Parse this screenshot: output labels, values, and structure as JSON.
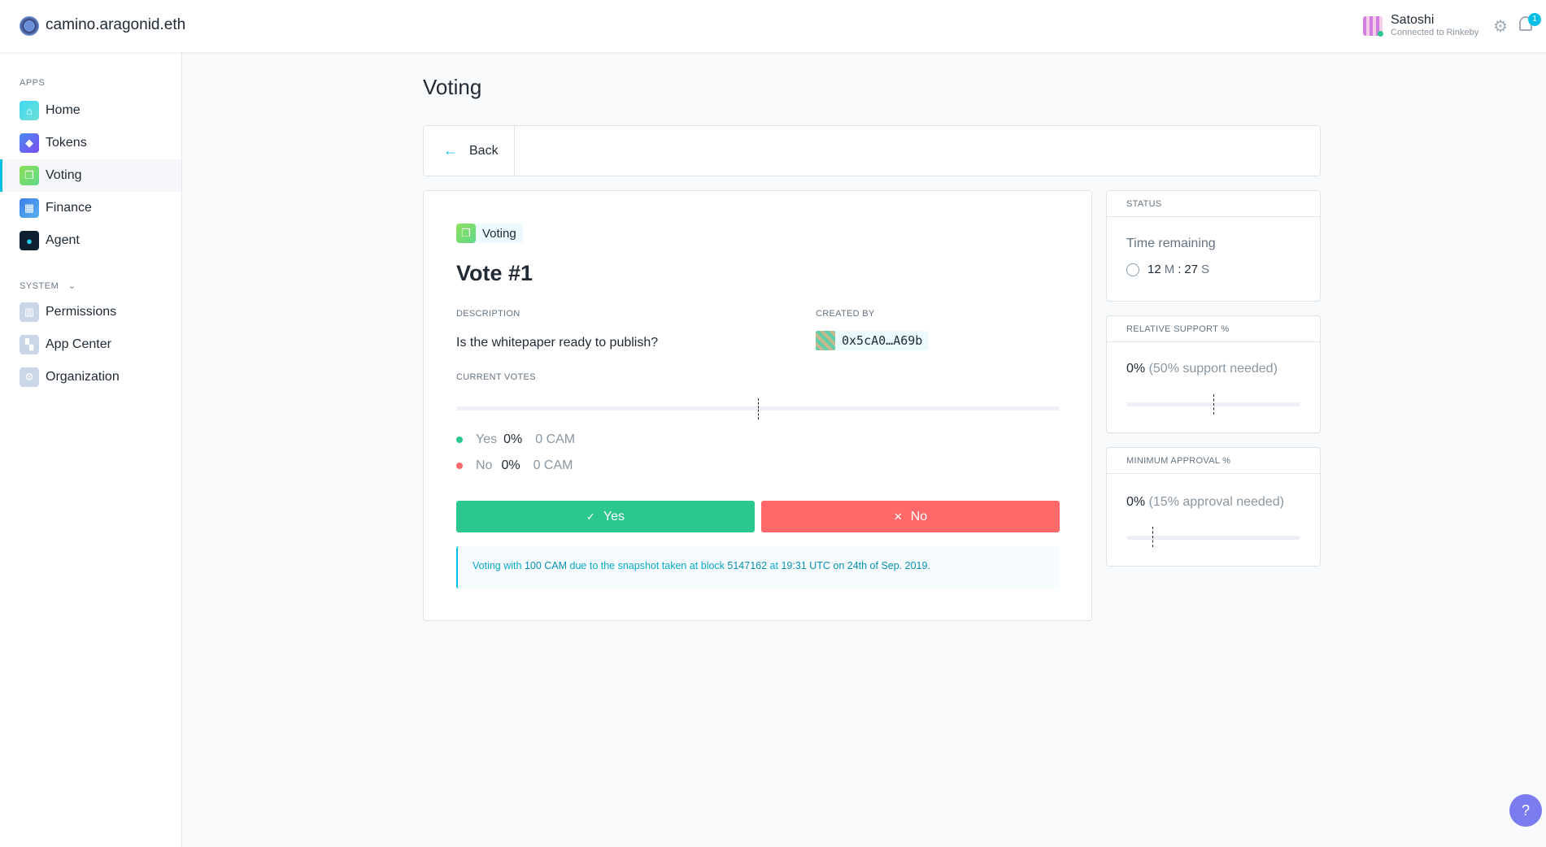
{
  "header": {
    "org_name": "camino.aragonid.eth",
    "user_name": "Satoshi",
    "network_status": "Connected to Rinkeby",
    "notification_count": "1"
  },
  "sidebar": {
    "apps_label": "APPS",
    "apps": [
      {
        "label": "Home",
        "icon": "home-icon",
        "color": "#3fd8f0"
      },
      {
        "label": "Tokens",
        "icon": "tokens-icon",
        "color": "#6b6cf0"
      },
      {
        "label": "Voting",
        "icon": "voting-icon",
        "color": "#7ee07a"
      },
      {
        "label": "Finance",
        "icon": "finance-icon",
        "color": "#4a90f0"
      },
      {
        "label": "Agent",
        "icon": "agent-icon",
        "color": "#0f2a3a"
      }
    ],
    "system_label": "SYSTEM",
    "system": [
      {
        "label": "Permissions",
        "icon": "permissions-icon"
      },
      {
        "label": "App Center",
        "icon": "app-center-icon"
      },
      {
        "label": "Organization",
        "icon": "organization-icon"
      }
    ]
  },
  "page": {
    "title": "Voting",
    "back_label": "Back"
  },
  "vote": {
    "app_tag": "Voting",
    "title": "Vote #1",
    "description_label": "DESCRIPTION",
    "description": "Is the whitepaper ready to publish?",
    "created_by_label": "CREATED BY",
    "creator": "0x5cA0…A69b",
    "current_votes_label": "CURRENT VOTES",
    "yes": {
      "label": "Yes",
      "pct": "0%",
      "amount": "0 CAM"
    },
    "no": {
      "label": "No",
      "pct": "0%",
      "amount": "0 CAM"
    },
    "yes_button": "Yes",
    "no_button": "No",
    "info": {
      "p1": "Voting with ",
      "amount": "100 CAM",
      "p2": " due to the snapshot taken at block ",
      "block": "5147162",
      "p3": " at ",
      "time": "19:31 UTC on 24th of Sep. 2019."
    }
  },
  "status": {
    "header": "STATUS",
    "time_label": "Time remaining",
    "minutes": "12",
    "m": "M",
    "sep": ":",
    "seconds": "27",
    "s": "S"
  },
  "support": {
    "header": "RELATIVE SUPPORT %",
    "value": "0%",
    "needed": "(50% support needed)",
    "required_fraction": 0.5
  },
  "approval": {
    "header": "MINIMUM APPROVAL %",
    "value": "0%",
    "needed": "(15% approval needed)",
    "required_fraction": 0.15
  },
  "colors": {
    "yes": "#2cc68f",
    "no": "#ff6969",
    "accent": "#08bee5"
  }
}
